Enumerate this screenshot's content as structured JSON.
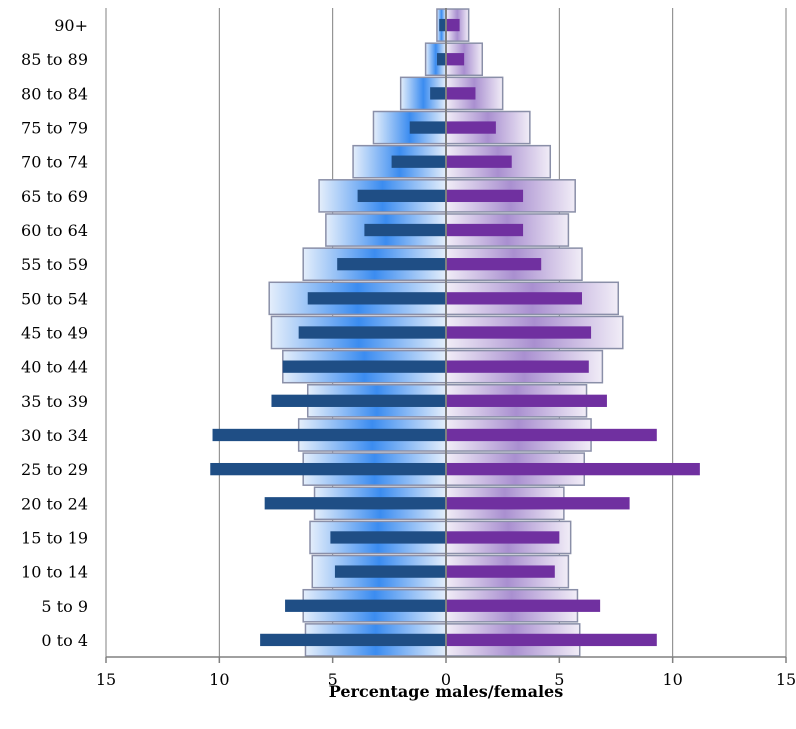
{
  "chart_data": {
    "type": "bar",
    "orientation": "horizontal",
    "layout": "population-pyramid",
    "categories": [
      "0 to 4",
      "5 to 9",
      "10 to 14",
      "15 to 19",
      "20 to 24",
      "25 to 29",
      "30 to 34",
      "35 to 39",
      "40 to 44",
      "45 to 49",
      "50 to 54",
      "55 to 59",
      "60 to 64",
      "65 to 69",
      "70 to 74",
      "75 to 79",
      "80 to 84",
      "85 to 89",
      "90+"
    ],
    "series": [
      {
        "side": "left",
        "style": "wide-gradient",
        "values": [
          6.2,
          6.3,
          5.9,
          6.0,
          5.8,
          6.3,
          6.5,
          6.1,
          7.2,
          7.7,
          7.8,
          6.3,
          5.3,
          5.6,
          4.1,
          3.2,
          2.0,
          0.9,
          0.4
        ]
      },
      {
        "side": "left",
        "style": "narrow-solid",
        "values": [
          8.2,
          7.1,
          4.9,
          5.1,
          8.0,
          10.4,
          10.3,
          7.7,
          7.2,
          6.5,
          6.1,
          4.8,
          3.6,
          3.9,
          2.4,
          1.6,
          0.7,
          0.4,
          0.3
        ]
      },
      {
        "side": "right",
        "style": "wide-gradient",
        "values": [
          5.9,
          5.8,
          5.4,
          5.5,
          5.2,
          6.1,
          6.4,
          6.2,
          6.9,
          7.8,
          7.6,
          6.0,
          5.4,
          5.7,
          4.6,
          3.7,
          2.5,
          1.6,
          1.0
        ]
      },
      {
        "side": "right",
        "style": "narrow-solid",
        "values": [
          9.3,
          6.8,
          4.8,
          5.0,
          8.1,
          11.2,
          9.3,
          7.1,
          6.3,
          6.4,
          6.0,
          4.2,
          3.4,
          3.4,
          2.9,
          2.2,
          1.3,
          0.8,
          0.6
        ]
      }
    ],
    "xlim": [
      -15,
      15
    ],
    "x_ticks": [
      {
        "value": -15,
        "label": "15"
      },
      {
        "value": -10,
        "label": "10"
      },
      {
        "value": -5,
        "label": "5"
      },
      {
        "value": 0,
        "label": "0"
      },
      {
        "value": 5,
        "label": "5"
      },
      {
        "value": 10,
        "label": "10"
      },
      {
        "value": 15,
        "label": "15"
      }
    ],
    "xlabel": "Percentage males/females",
    "ylabel": "",
    "title": "",
    "grid": "vertical",
    "legend": "none",
    "colors": {
      "left_narrow": "#1f4e85",
      "right_narrow": "#7030a0",
      "left_wide_center": "#3b8cf0",
      "left_wide_edge": "#e4eefb",
      "right_wide_center": "#a98fd0",
      "right_wide_edge": "#f1edf7",
      "bar_border": "#8a8fa8",
      "gridline": "#808080",
      "axis": "#808080"
    }
  }
}
